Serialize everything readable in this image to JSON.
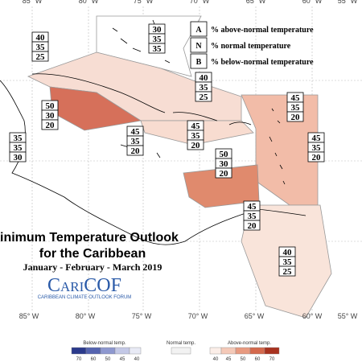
{
  "map": {
    "lon_labels_top": [
      "85° W",
      "80° W",
      "75° W",
      "70° W",
      "65° W",
      "60° W",
      "55° W"
    ],
    "lon_labels_bottom": [
      "85° W",
      "80° W",
      "75° W",
      "70° W",
      "65° W",
      "60° W",
      "55° W"
    ]
  },
  "key": {
    "rows": [
      {
        "letter": "A",
        "text": "% above-normal temperature"
      },
      {
        "letter": "N",
        "text": "% normal temperature"
      },
      {
        "letter": "B",
        "text": "% below-normal temperature"
      }
    ]
  },
  "regions": [
    {
      "above": 40,
      "normal": 35,
      "below": 25
    },
    {
      "above": 30,
      "normal": 35,
      "below": 35
    },
    {
      "above": 40,
      "normal": 35,
      "below": 25
    },
    {
      "above": 50,
      "normal": 30,
      "below": 20
    },
    {
      "above": 35,
      "normal": 35,
      "below": 30
    },
    {
      "above": 45,
      "normal": 35,
      "below": 20
    },
    {
      "above": 45,
      "normal": 35,
      "below": 20
    },
    {
      "above": 45,
      "normal": 35,
      "below": 20
    },
    {
      "above": 45,
      "normal": 35,
      "below": 20
    },
    {
      "above": 50,
      "normal": 30,
      "below": 20
    },
    {
      "above": 45,
      "normal": 35,
      "below": 20
    },
    {
      "above": 40,
      "normal": 35,
      "below": 25
    }
  ],
  "title": "inimum Temperature Outlook",
  "subtitle": "for the Caribbean",
  "period": "January - February - March 2019",
  "logo": {
    "name": "CariCOF",
    "tagline": "CARIBBEAN CLIMATE OUTLOOK FORUM"
  },
  "colorbar": {
    "below": {
      "title": "Below-normal temp.",
      "labels": [
        70,
        60,
        50,
        45,
        40
      ]
    },
    "normal": {
      "title": "Normal temp."
    },
    "above": {
      "title": "Above-normal temp.",
      "labels": [
        40,
        45,
        50,
        60,
        70
      ]
    }
  }
}
